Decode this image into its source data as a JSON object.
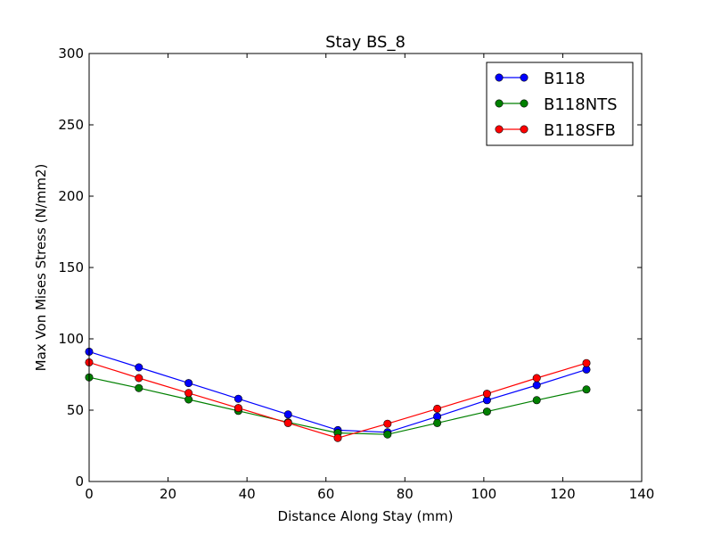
{
  "chart_data": {
    "type": "line",
    "title": "Stay BS_8",
    "xlabel": "Distance Along Stay (mm)",
    "ylabel": "Max Von Mises Stress (N/mm2)",
    "xlim": [
      0,
      140
    ],
    "ylim": [
      0,
      300
    ],
    "xticks": [
      0,
      20,
      40,
      60,
      80,
      100,
      120,
      140
    ],
    "yticks": [
      0,
      50,
      100,
      150,
      200,
      250,
      300
    ],
    "grid": false,
    "legend_position": "top-right",
    "x": [
      0,
      12.6,
      25.2,
      37.8,
      50.4,
      63,
      75.6,
      88.2,
      100.8,
      113.4,
      126
    ],
    "series": [
      {
        "name": "B118",
        "color": "#0000ff",
        "values": [
          91,
          80,
          69,
          58,
          47,
          36,
          34.5,
          45.5,
          57,
          67.5,
          78.5
        ]
      },
      {
        "name": "B118NTS",
        "color": "#008000",
        "values": [
          73,
          65.5,
          57.5,
          49.5,
          41.5,
          34,
          33,
          41,
          49,
          57,
          64.5
        ]
      },
      {
        "name": "B118SFB",
        "color": "#ff0000",
        "values": [
          83.5,
          72.5,
          62,
          51.5,
          41,
          30.5,
          40.5,
          51,
          61.5,
          72.5,
          83
        ]
      }
    ]
  }
}
